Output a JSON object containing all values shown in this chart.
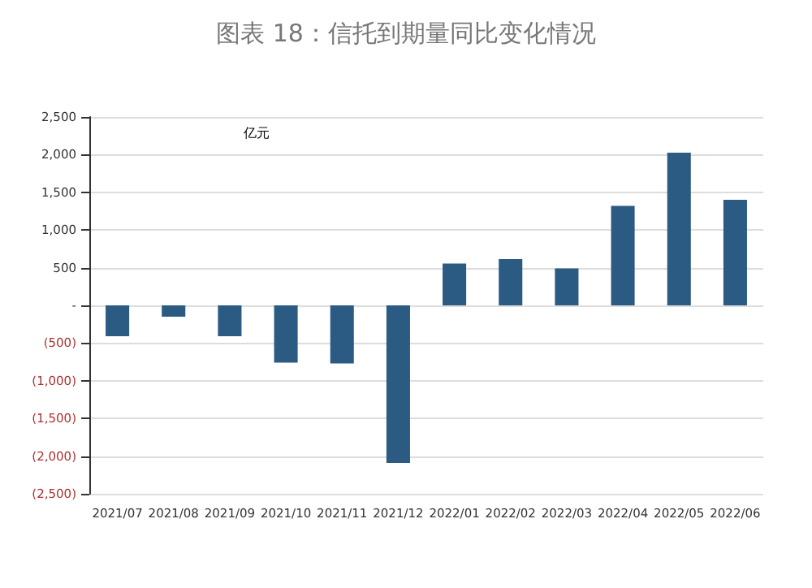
{
  "chart_data": {
    "type": "bar",
    "title": "图表 18：信托到期量同比变化情况",
    "ylabel": "亿元",
    "categories": [
      "2021/07",
      "2021/08",
      "2021/09",
      "2021/10",
      "2021/11",
      "2021/12",
      "2022/01",
      "2022/02",
      "2022/03",
      "2022/04",
      "2022/05",
      "2022/06"
    ],
    "values": [
      -410,
      -150,
      -410,
      -760,
      -770,
      -2090,
      555,
      615,
      490,
      1320,
      2025,
      1400
    ],
    "color": "#2b5a82",
    "ylim": [
      -2500,
      2500
    ],
    "yticks": [
      {
        "value": -2500,
        "label": "(2,500)"
      },
      {
        "value": -2000,
        "label": "(2,000)"
      },
      {
        "value": -1500,
        "label": "(1,500)"
      },
      {
        "value": -1000,
        "label": "(1,000)"
      },
      {
        "value": -500,
        "label": "(500)"
      },
      {
        "value": 0,
        "label": "-"
      },
      {
        "value": 500,
        "label": "500"
      },
      {
        "value": 1000,
        "label": "1,000"
      },
      {
        "value": 1500,
        "label": "1,500"
      },
      {
        "value": 2000,
        "label": "2,000"
      },
      {
        "value": 2500,
        "label": "2,500"
      }
    ],
    "grid": "y"
  }
}
